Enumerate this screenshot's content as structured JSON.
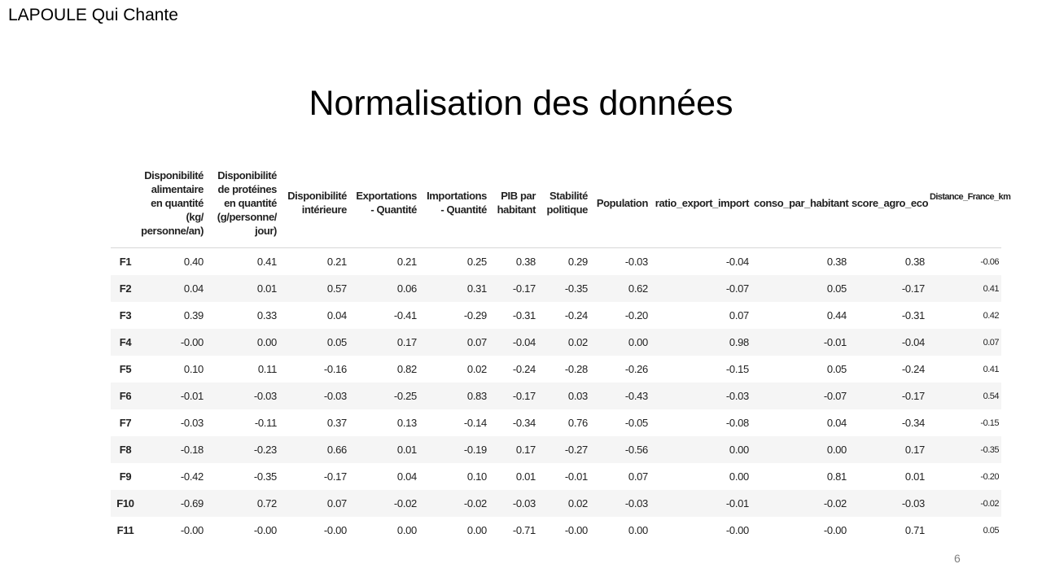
{
  "brand": "LAPOULE Qui Chante",
  "title": "Normalisation des données",
  "page_number": "6",
  "table": {
    "headers": [
      "",
      "Disponibilité alimentaire en quantité (kg/ personne/an)",
      "Disponibilité de protéines en quantité (g/personne/ jour)",
      "Disponibilité intérieure",
      "Exportations - Quantité",
      "Importations - Quantité",
      "PIB par habitant",
      "Stabilité politique",
      "Population",
      "ratio_export_import",
      "conso_par_habitant",
      "score_agro_eco"
    ],
    "rows": [
      {
        "label": "F1",
        "values": [
          "0.40",
          "0.41",
          "0.21",
          "0.21",
          "0.25",
          "0.38",
          "0.29",
          "-0.03",
          "-0.04",
          "0.38",
          "0.38"
        ]
      },
      {
        "label": "F2",
        "values": [
          "0.04",
          "0.01",
          "0.57",
          "0.06",
          "0.31",
          "-0.17",
          "-0.35",
          "0.62",
          "-0.07",
          "0.05",
          "-0.17"
        ]
      },
      {
        "label": "F3",
        "values": [
          "0.39",
          "0.33",
          "0.04",
          "-0.41",
          "-0.29",
          "-0.31",
          "-0.24",
          "-0.20",
          "0.07",
          "0.44",
          "-0.31"
        ]
      },
      {
        "label": "F4",
        "values": [
          "-0.00",
          "0.00",
          "0.05",
          "0.17",
          "0.07",
          "-0.04",
          "0.02",
          "0.00",
          "0.98",
          "-0.01",
          "-0.04"
        ]
      },
      {
        "label": "F5",
        "values": [
          "0.10",
          "0.11",
          "-0.16",
          "0.82",
          "0.02",
          "-0.24",
          "-0.28",
          "-0.26",
          "-0.15",
          "0.05",
          "-0.24"
        ]
      },
      {
        "label": "F6",
        "values": [
          "-0.01",
          "-0.03",
          "-0.03",
          "-0.25",
          "0.83",
          "-0.17",
          "0.03",
          "-0.43",
          "-0.03",
          "-0.07",
          "-0.17"
        ]
      },
      {
        "label": "F7",
        "values": [
          "-0.03",
          "-0.11",
          "0.37",
          "0.13",
          "-0.14",
          "-0.34",
          "0.76",
          "-0.05",
          "-0.08",
          "0.04",
          "-0.34"
        ]
      },
      {
        "label": "F8",
        "values": [
          "-0.18",
          "-0.23",
          "0.66",
          "0.01",
          "-0.19",
          "0.17",
          "-0.27",
          "-0.56",
          "0.00",
          "0.00",
          "0.17"
        ]
      },
      {
        "label": "F9",
        "values": [
          "-0.42",
          "-0.35",
          "-0.17",
          "0.04",
          "0.10",
          "0.01",
          "-0.01",
          "0.07",
          "0.00",
          "0.81",
          "0.01"
        ]
      },
      {
        "label": "F10",
        "values": [
          "-0.69",
          "0.72",
          "0.07",
          "-0.02",
          "-0.02",
          "-0.03",
          "0.02",
          "-0.03",
          "-0.01",
          "-0.02",
          "-0.03"
        ]
      },
      {
        "label": "F11",
        "values": [
          "-0.00",
          "-0.00",
          "-0.00",
          "0.00",
          "0.00",
          "-0.71",
          "-0.00",
          "0.00",
          "-0.00",
          "-0.00",
          "0.71"
        ]
      }
    ]
  },
  "side_table": {
    "header": "Distance_France_km",
    "values": [
      "-0.06",
      "0.41",
      "0.42",
      "0.07",
      "0.41",
      "0.54",
      "-0.15",
      "-0.35",
      "-0.20",
      "-0.02",
      "0.05"
    ]
  }
}
